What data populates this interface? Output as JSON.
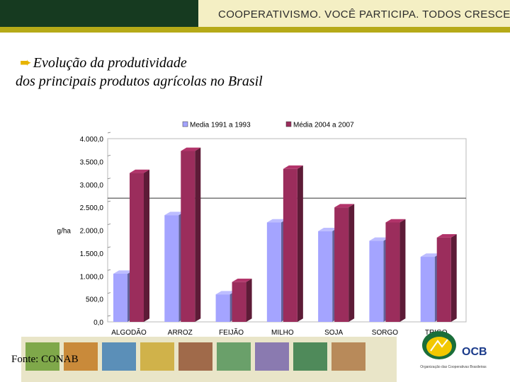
{
  "header": {
    "slogan": "COOPERATIVISMO. VOCÊ PARTICIPA. TODOS CRESCEM."
  },
  "title": {
    "line1": "Evolução da produtividade",
    "line2": "dos principais produtos agrícolas no Brasil",
    "bullet_icon": "arrow-right-icon"
  },
  "chart_data": {
    "type": "bar",
    "categories": [
      "ALGODÃO",
      "ARROZ",
      "FEIJÃO",
      "MILHO",
      "SOJA",
      "SORGO",
      "TRIGO"
    ],
    "series": [
      {
        "name": "Media 1991 a 1993",
        "color": "#a4a4ff",
        "values": [
          1050,
          2330,
          600,
          2170,
          1980,
          1770,
          1420
        ]
      },
      {
        "name": "Média 2004 a 2007",
        "color": "#9b2d5c",
        "values": [
          3250,
          3730,
          870,
          3340,
          2500,
          2170,
          1840
        ]
      }
    ],
    "ylabel": "Kg/ha",
    "ylim": [
      0,
      4000
    ],
    "yticks": [
      "0,0",
      "500,0",
      "1.000,0",
      "1.500,0",
      "2.000,0",
      "2.500,0",
      "3.000,0",
      "3.500,0",
      "4.000,0"
    ],
    "reference_line": 2700,
    "legend_position": "top",
    "grid": false
  },
  "footer": {
    "source": "Fonte: CONAB",
    "logo_text": "OCB",
    "logo_caption": "Organização das Cooperativas Brasileiras"
  }
}
